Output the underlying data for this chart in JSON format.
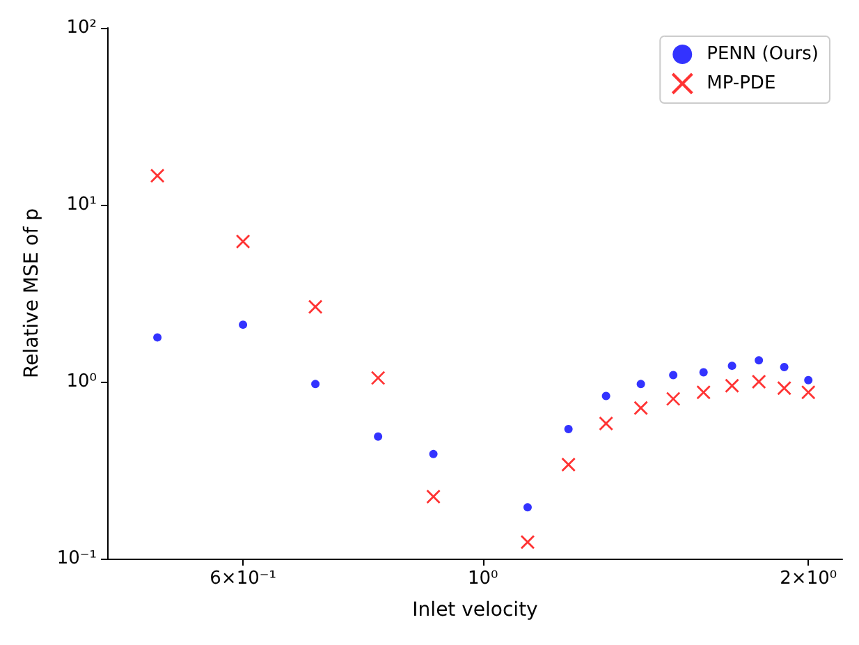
{
  "chart_data": {
    "type": "scatter",
    "xlabel": "Inlet velocity",
    "ylabel": "Relative MSE of p",
    "x": [
      0.5,
      0.6,
      0.7,
      0.8,
      0.9,
      1.1,
      1.2,
      1.3,
      1.4,
      1.5,
      1.6,
      1.7,
      1.8,
      1.9,
      2.0
    ],
    "series": [
      {
        "name": "PENN (Ours)",
        "color": "#0000ff",
        "marker": "circle",
        "values": [
          1.78,
          2.1,
          0.97,
          0.49,
          0.39,
          0.195,
          0.54,
          0.83,
          0.97,
          1.09,
          1.13,
          1.23,
          1.32,
          1.21,
          1.02
        ]
      },
      {
        "name": "MP-PDE",
        "color": "#ff0000",
        "marker": "cross",
        "values": [
          14.6,
          6.2,
          2.65,
          1.05,
          0.224,
          0.124,
          0.34,
          0.58,
          0.71,
          0.8,
          0.87,
          0.95,
          1.0,
          0.92,
          0.87
        ]
      }
    ],
    "log": "xy",
    "xlim": [
      0.45,
      2.15
    ],
    "ylim": [
      0.1,
      100
    ],
    "xticks": [
      {
        "value": 0.6,
        "label": "6×10⁻¹"
      },
      {
        "value": 1,
        "label": "10⁰"
      },
      {
        "value": 2,
        "label": "2×10⁰"
      }
    ],
    "yticks": [
      {
        "value": 0.1,
        "label": "10⁻¹"
      },
      {
        "value": 1,
        "label": "10⁰"
      },
      {
        "value": 10,
        "label": "10¹"
      },
      {
        "value": 100,
        "label": "10²"
      }
    ],
    "legend": "top right",
    "grid": false
  }
}
